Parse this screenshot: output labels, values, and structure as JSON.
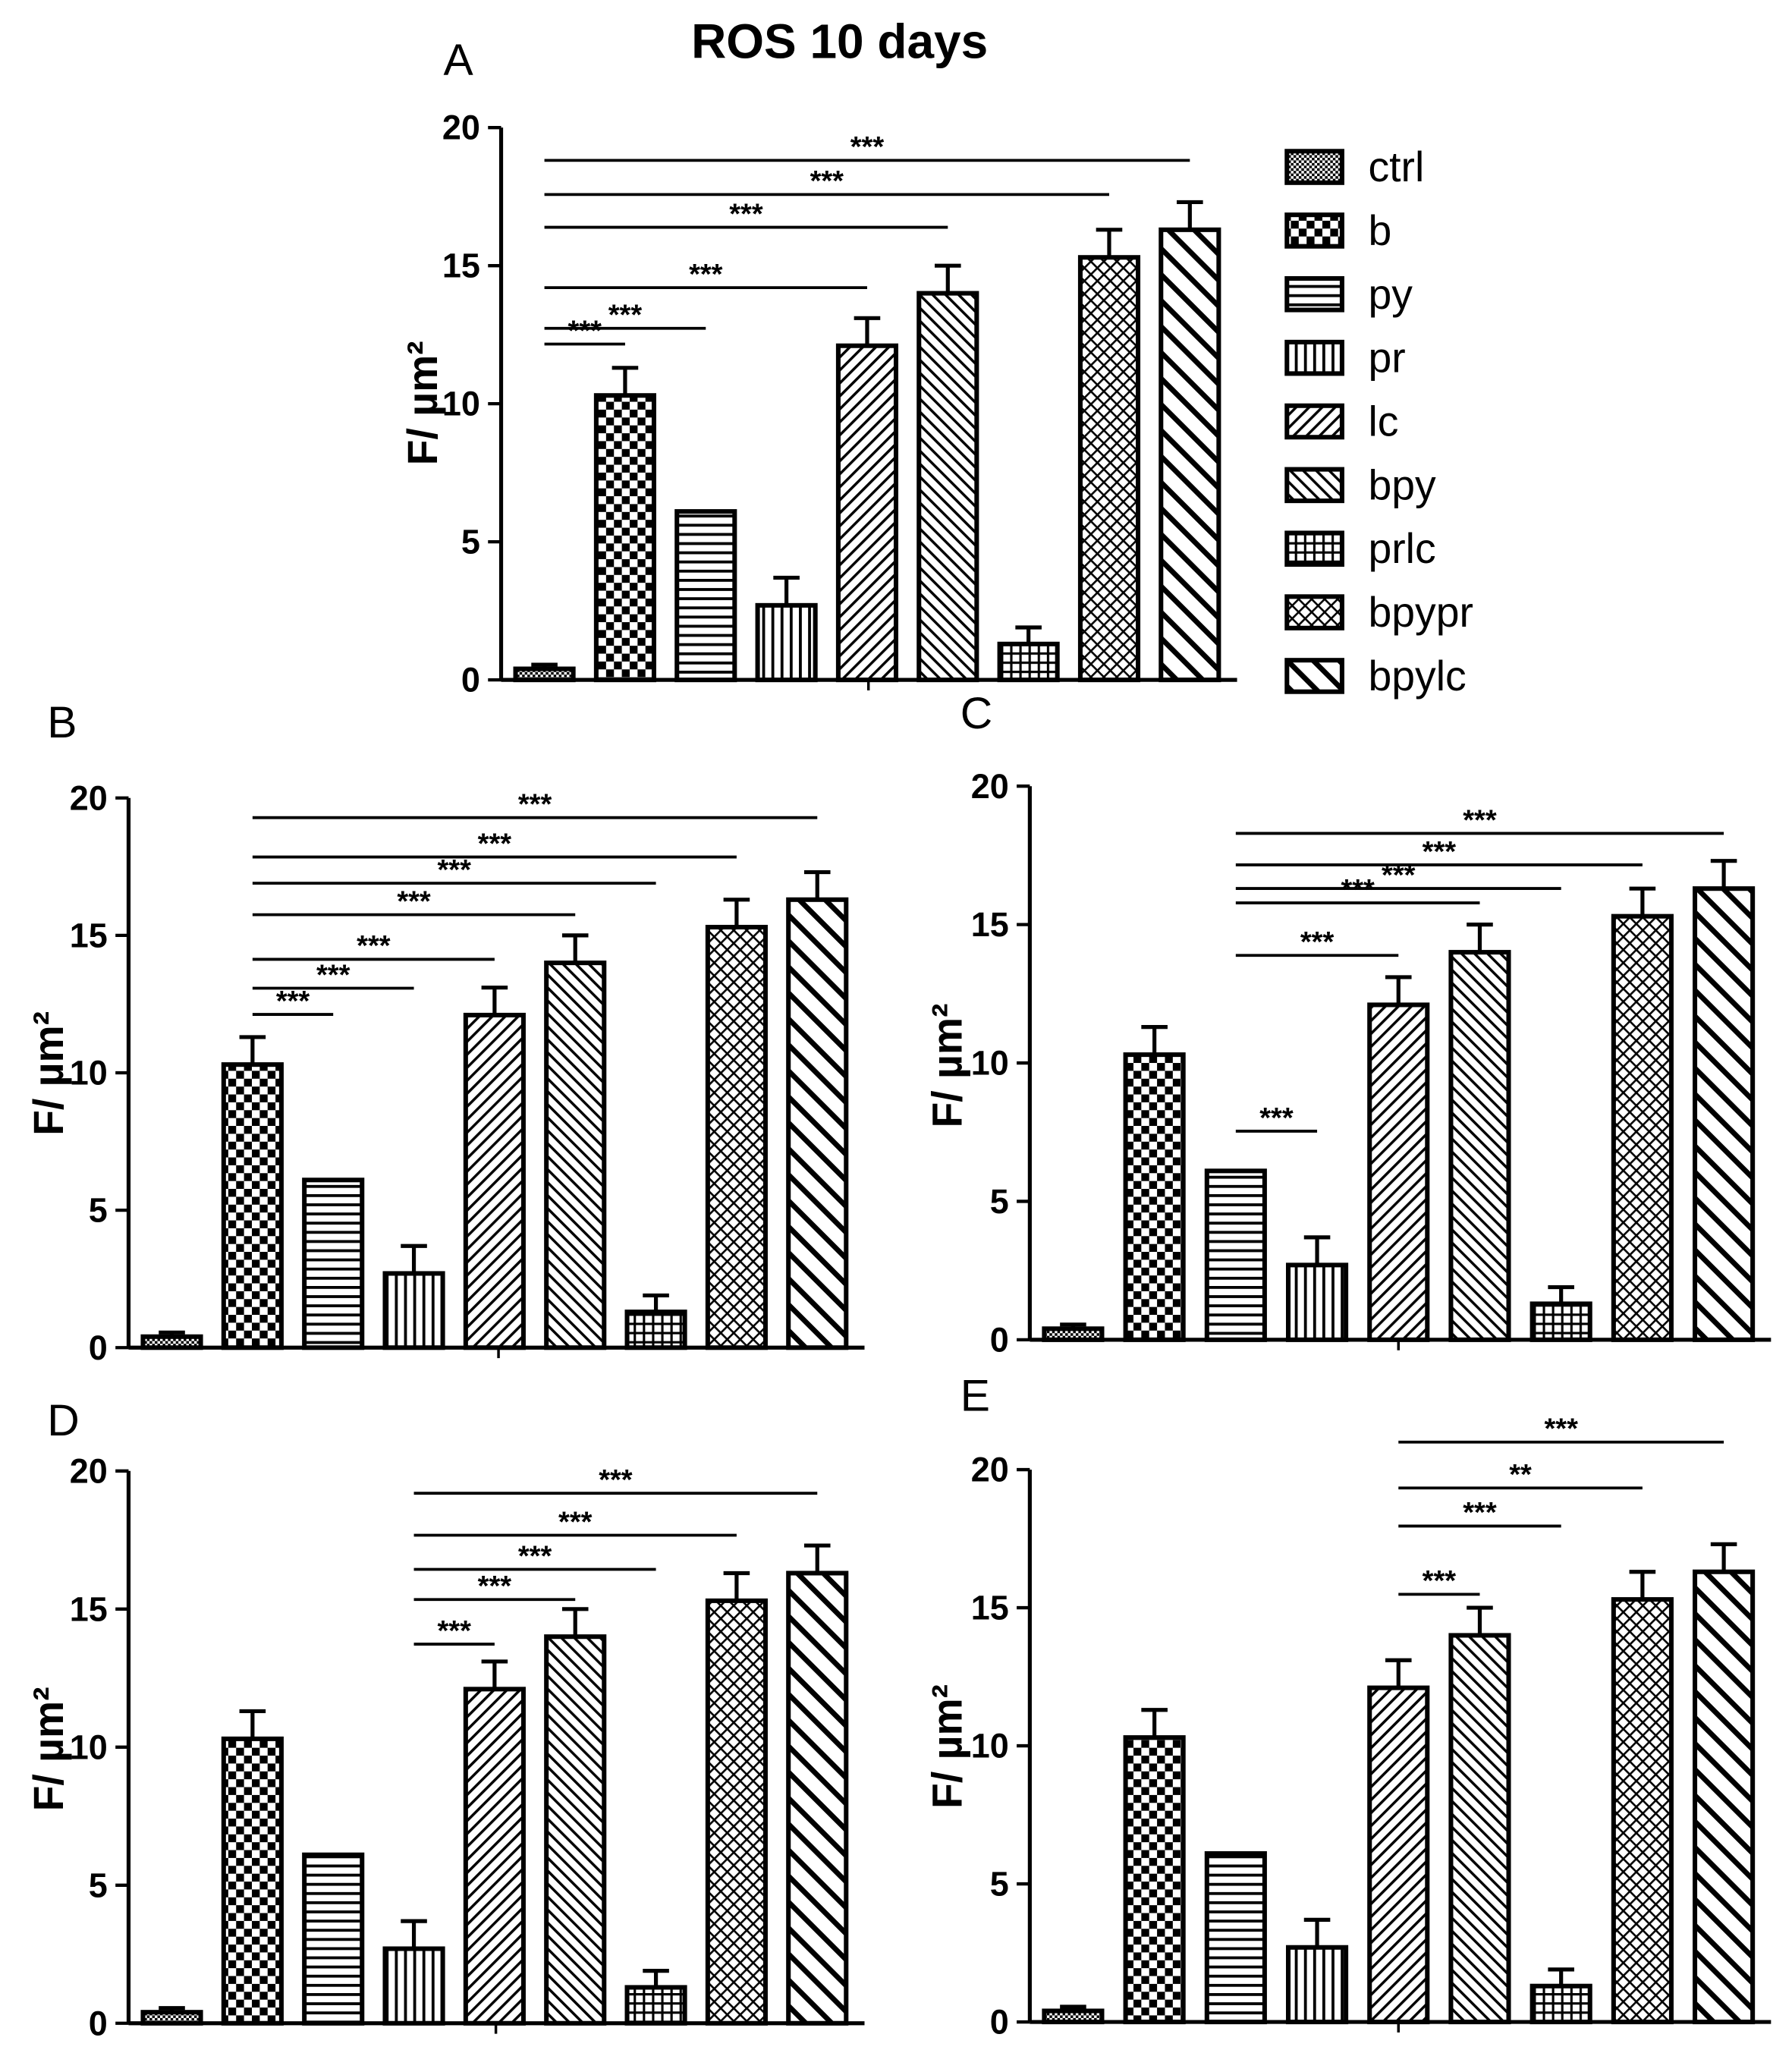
{
  "chart_data": [
    {
      "panel": "A",
      "type": "bar",
      "title": "ROS 10 days",
      "ylabel": "F/ µm²",
      "ylim": [
        0,
        20
      ],
      "yticks": [
        "0",
        "5",
        "10",
        "15",
        "20"
      ],
      "categories": [
        "ctrl",
        "b",
        "py",
        "pr",
        "lc",
        "bpy",
        "prlc",
        "bpypr",
        "bpylc"
      ],
      "values": [
        0.4,
        10.3,
        6.1,
        2.7,
        12.1,
        14.0,
        1.3,
        15.3,
        16.3
      ],
      "errors": [
        0.15,
        1.0,
        0.0,
        1.0,
        1.0,
        1.0,
        0.6,
        1.0,
        1.0
      ],
      "patterns": [
        "dots",
        "checker",
        "hlines",
        "vlines",
        "diag-right",
        "diag-left",
        "grid",
        "crosshatch",
        "diag-left-bold"
      ],
      "legend": {
        "position": "right",
        "entries": [
          "ctrl",
          "b",
          "py",
          "pr",
          "lc",
          "bpy",
          "prlc",
          "bpypr",
          "bpylc"
        ]
      },
      "significance": [
        {
          "from": "ctrl",
          "to": "b",
          "label": "***"
        },
        {
          "from": "ctrl",
          "to": "py",
          "label": "***"
        },
        {
          "from": "ctrl",
          "to": "lc",
          "label": "***"
        },
        {
          "from": "ctrl",
          "to": "bpy",
          "label": "***"
        },
        {
          "from": "ctrl",
          "to": "bpypr",
          "label": "***"
        },
        {
          "from": "ctrl",
          "to": "bpylc",
          "label": "***"
        }
      ]
    },
    {
      "panel": "B",
      "type": "bar",
      "ylabel": "F/ µm²",
      "ylim": [
        0,
        20
      ],
      "yticks": [
        "0",
        "5",
        "10",
        "15",
        "20"
      ],
      "categories": [
        "ctrl",
        "b",
        "py",
        "pr",
        "lc",
        "bpy",
        "prlc",
        "bpypr",
        "bpylc"
      ],
      "values": [
        0.4,
        10.3,
        6.1,
        2.7,
        12.1,
        14.0,
        1.3,
        15.3,
        16.3
      ],
      "errors": [
        0.15,
        1.0,
        0.0,
        1.0,
        1.0,
        1.0,
        0.6,
        1.0,
        1.0
      ],
      "significance": [
        {
          "from": "b",
          "to": "py",
          "label": "***"
        },
        {
          "from": "b",
          "to": "pr",
          "label": "***"
        },
        {
          "from": "b",
          "to": "lc",
          "label": "***"
        },
        {
          "from": "b",
          "to": "bpy",
          "label": "***"
        },
        {
          "from": "b",
          "to": "prlc",
          "label": "***"
        },
        {
          "from": "b",
          "to": "bpypr",
          "label": "***"
        },
        {
          "from": "b",
          "to": "bpylc",
          "label": "***"
        }
      ]
    },
    {
      "panel": "C",
      "type": "bar",
      "ylabel": "F/ µm²",
      "ylim": [
        0,
        20
      ],
      "yticks": [
        "0",
        "5",
        "10",
        "15",
        "20"
      ],
      "categories": [
        "ctrl",
        "b",
        "py",
        "pr",
        "lc",
        "bpy",
        "prlc",
        "bpypr",
        "bpylc"
      ],
      "values": [
        0.4,
        10.3,
        6.1,
        2.7,
        12.1,
        14.0,
        1.3,
        15.3,
        16.3
      ],
      "errors": [
        0.15,
        1.0,
        0.0,
        1.0,
        1.0,
        1.0,
        0.6,
        1.0,
        1.0
      ],
      "significance": [
        {
          "from": "py",
          "to": "pr",
          "label": "***"
        },
        {
          "from": "py",
          "to": "lc",
          "label": "***"
        },
        {
          "from": "py",
          "to": "bpy",
          "label": "***"
        },
        {
          "from": "py",
          "to": "prlc",
          "label": "***"
        },
        {
          "from": "py",
          "to": "bpypr",
          "label": "***"
        },
        {
          "from": "py",
          "to": "bpylc",
          "label": "***"
        }
      ]
    },
    {
      "panel": "D",
      "type": "bar",
      "ylabel": "F/ µm²",
      "ylim": [
        0,
        20
      ],
      "yticks": [
        "0",
        "5",
        "10",
        "15",
        "20"
      ],
      "categories": [
        "ctrl",
        "b",
        "py",
        "pr",
        "lc",
        "bpy",
        "prlc",
        "bpypr",
        "bpylc"
      ],
      "values": [
        0.4,
        10.3,
        6.1,
        2.7,
        12.1,
        14.0,
        1.3,
        15.3,
        16.3
      ],
      "errors": [
        0.15,
        1.0,
        0.0,
        1.0,
        1.0,
        1.0,
        0.6,
        1.0,
        1.0
      ],
      "significance": [
        {
          "from": "pr",
          "to": "lc",
          "label": "***"
        },
        {
          "from": "pr",
          "to": "bpy",
          "label": "***"
        },
        {
          "from": "pr",
          "to": "prlc",
          "label": "***"
        },
        {
          "from": "pr",
          "to": "bpypr",
          "label": "***"
        },
        {
          "from": "pr",
          "to": "bpylc",
          "label": "***"
        }
      ]
    },
    {
      "panel": "E",
      "type": "bar",
      "ylabel": "F/ µm²",
      "ylim": [
        0,
        20
      ],
      "yticks": [
        "0",
        "5",
        "10",
        "15",
        "20"
      ],
      "categories": [
        "ctrl",
        "b",
        "py",
        "pr",
        "lc",
        "bpy",
        "prlc",
        "bpypr",
        "bpylc"
      ],
      "values": [
        0.4,
        10.3,
        6.1,
        2.7,
        12.1,
        14.0,
        1.3,
        15.3,
        16.3
      ],
      "errors": [
        0.15,
        1.0,
        0.0,
        1.0,
        1.0,
        1.0,
        0.6,
        1.0,
        1.0
      ],
      "significance": [
        {
          "from": "lc",
          "to": "bpy",
          "label": "***"
        },
        {
          "from": "lc",
          "to": "prlc",
          "label": "***"
        },
        {
          "from": "lc",
          "to": "bpypr",
          "label": "**"
        },
        {
          "from": "lc",
          "to": "bpylc",
          "label": "***"
        }
      ]
    }
  ],
  "colors": {
    "ink": "#000000",
    "background": "#ffffff"
  }
}
